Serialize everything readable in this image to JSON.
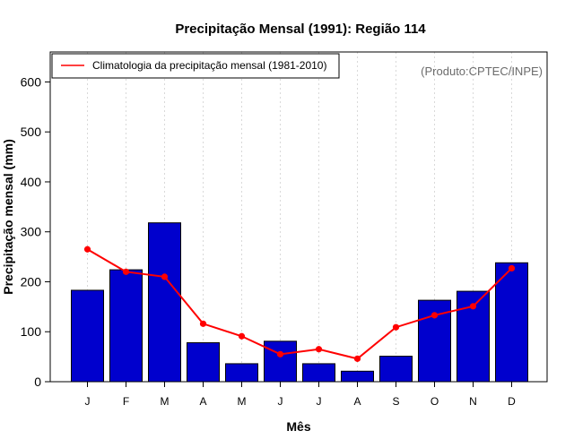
{
  "chart_data": {
    "type": "bar",
    "title": "Precipitação Mensal (1991): Região 114",
    "xlabel": "Mês",
    "ylabel": "Precipitação mensal (mm)",
    "credit": "(Produto:CPTEC/INPE)",
    "categories": [
      "J",
      "F",
      "M",
      "A",
      "M",
      "J",
      "J",
      "A",
      "S",
      "O",
      "N",
      "D"
    ],
    "yticks": [
      0,
      100,
      200,
      300,
      400,
      500,
      600
    ],
    "ylim": [
      0,
      660
    ],
    "series": [
      {
        "name": "Precipitação mensal (1991)",
        "type": "bar",
        "color": "#0000cd",
        "values": [
          183,
          224,
          318,
          78,
          36,
          81,
          36,
          21,
          51,
          163,
          181,
          238
        ]
      },
      {
        "name": "Climatologia da precipitação mensal (1981-2010)",
        "type": "line",
        "color": "#ff0000",
        "values": [
          265,
          220,
          210,
          116,
          91,
          55,
          65,
          46,
          109,
          133,
          151,
          227
        ]
      }
    ],
    "legend": {
      "position": "top-left",
      "label": "Climatologia da precipitação mensal (1981-2010)"
    }
  }
}
